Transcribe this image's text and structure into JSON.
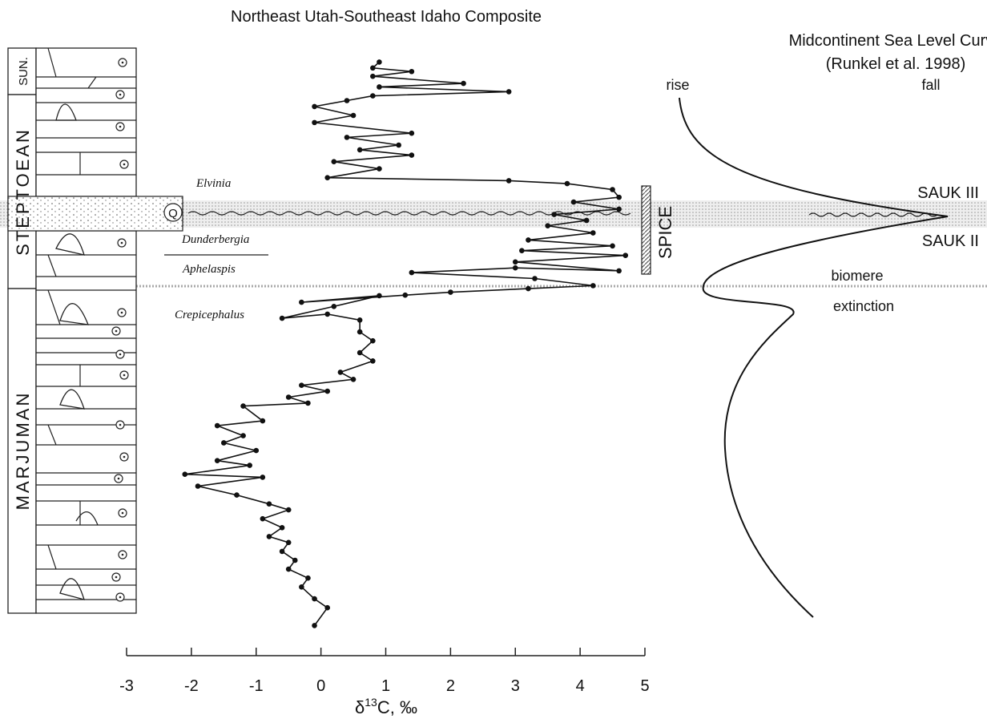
{
  "chart_data": {
    "type": "line",
    "title": "Northeast Utah-Southeast Idaho Composite",
    "xlabel_parts": [
      "δ",
      "13",
      "C, ‰"
    ],
    "xlim": [
      -3,
      5
    ],
    "xticks": [
      -3,
      -2,
      -1,
      0,
      1,
      2,
      3,
      4,
      5
    ],
    "ylim": [
      0,
      100
    ],
    "series": [
      {
        "color": "#111111",
        "values": [
          -0.1,
          0.1,
          -0.1,
          -0.3,
          -0.2,
          -0.5,
          -0.4,
          -0.6,
          -0.5,
          -0.8,
          -0.6,
          -0.9,
          -0.5,
          -0.8,
          -1.3,
          -1.9,
          -0.9,
          -2.1,
          -1.1,
          -1.6,
          -1.0,
          -1.5,
          -1.2,
          -1.6,
          -0.9,
          -1.2,
          -0.2,
          -0.5,
          0.1,
          -0.3,
          0.5,
          0.3,
          0.8,
          0.6,
          0.8,
          0.6,
          0.6,
          0.1,
          -0.6,
          0.2,
          0.9,
          -0.3,
          1.3,
          2.0,
          3.2,
          4.2,
          3.3,
          1.4,
          3.0,
          4.6,
          3.0,
          4.7,
          3.1,
          4.5,
          3.2,
          4.2,
          3.5,
          4.1,
          3.6,
          4.6,
          3.9,
          4.6,
          4.5,
          3.8,
          2.9,
          0.1,
          0.9,
          0.2,
          1.4,
          0.6,
          1.2,
          0.4,
          1.4,
          -0.1,
          0.5,
          -0.1,
          0.4,
          0.8,
          2.9,
          0.9,
          2.2,
          0.8,
          1.4,
          0.8,
          0.9
        ],
        "y": [
          4,
          7,
          8.5,
          10.5,
          12,
          13.5,
          15,
          16.5,
          18,
          19,
          20.5,
          22,
          23.5,
          24.5,
          26,
          27.5,
          29,
          29.5,
          31,
          31.8,
          33.5,
          34.8,
          36,
          37.7,
          38.5,
          41,
          41.5,
          42.5,
          43.5,
          44.5,
          45.5,
          46.7,
          48.6,
          50,
          52,
          53.5,
          55.5,
          56.5,
          55.8,
          57.8,
          59.6,
          58.5,
          59.7,
          60.2,
          60.8,
          61.3,
          62.5,
          63.5,
          64.3,
          63.8,
          65.3,
          66.4,
          67.2,
          68,
          69,
          70.2,
          71.4,
          72.3,
          73.3,
          74.2,
          75.4,
          76.2,
          77.5,
          78.5,
          79,
          79.5,
          81,
          82.2,
          83.3,
          84.2,
          85,
          86.3,
          87,
          88.8,
          90,
          91.5,
          92.5,
          93.3,
          94,
          94.8,
          95.4,
          96.6,
          97.4,
          98,
          99
        ]
      }
    ],
    "stages": [
      "SUN.",
      "STEPTOEAN",
      "MARJUMAN"
    ],
    "zones": [
      "Elvinia",
      "Dunderbergia",
      "Aphelaspis",
      "Crepicephalus"
    ],
    "quartz_label": "Q",
    "excursion_label": "SPICE",
    "sea_level": {
      "title": "Midcontinent Sea Level Curve",
      "source": "(Runkel et al. 1998)",
      "rise": "rise",
      "fall": "fall",
      "upper_sequence": "SAUK III",
      "lower_sequence": "SAUK II",
      "event_1": "biomere",
      "event_2": "extinction"
    }
  }
}
